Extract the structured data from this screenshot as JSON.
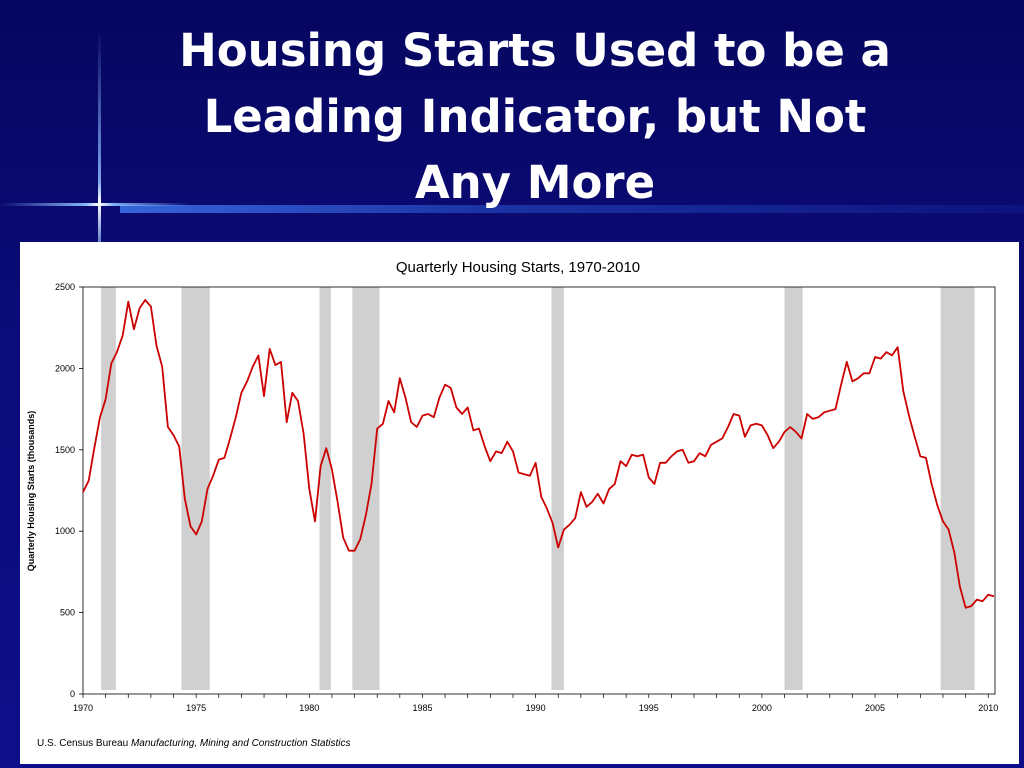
{
  "slide": {
    "title_line1": "Housing Starts Used to be a",
    "title_line2": "Leading Indicator, but Not",
    "title_line3": "Any More"
  },
  "source": {
    "prefix": "U.S. Census Bureau",
    "publication": "Manufacturing, Mining and Construction Statistics"
  },
  "chart_data": {
    "type": "line",
    "title": "Quarterly Housing Starts, 1970-2010",
    "xlabel": "",
    "ylabel": "Quarterly Housing Starts (thousands)",
    "xlim": [
      1970,
      2010.3
    ],
    "ylim": [
      0,
      2500
    ],
    "x_ticks": [
      1970,
      1975,
      1980,
      1985,
      1990,
      1995,
      2000,
      2005,
      2010
    ],
    "y_ticks": [
      0,
      500,
      1000,
      1500,
      2000,
      2500
    ],
    "grid": false,
    "line_color": "#cc0000",
    "recession_color": "#d0d0d0",
    "recessions": [
      [
        1970.8,
        1971.45
      ],
      [
        1974.35,
        1975.6
      ],
      [
        1980.45,
        1980.95
      ],
      [
        1981.9,
        1983.1
      ],
      [
        1990.7,
        1991.25
      ],
      [
        2001.0,
        2001.8
      ],
      [
        2007.9,
        2009.4
      ]
    ],
    "series": [
      {
        "x_start": 1970.0,
        "x_step": 0.25,
        "values": [
          1240,
          1310,
          1510,
          1700,
          1810,
          2030,
          2100,
          2200,
          2410,
          2240,
          2370,
          2420,
          2380,
          2140,
          2010,
          1640,
          1590,
          1520,
          1200,
          1030,
          980,
          1060,
          1260,
          1340,
          1440,
          1450,
          1570,
          1700,
          1850,
          1920,
          2010,
          2080,
          1830,
          2120,
          2020,
          2040,
          1670,
          1850,
          1800,
          1600,
          1260,
          1060,
          1400,
          1510,
          1380,
          1180,
          960,
          880,
          880,
          950,
          1100,
          1290,
          1630,
          1660,
          1800,
          1730,
          1940,
          1820,
          1670,
          1640,
          1710,
          1720,
          1700,
          1820,
          1900,
          1880,
          1760,
          1720,
          1760,
          1620,
          1630,
          1520,
          1430,
          1490,
          1480,
          1550,
          1490,
          1360,
          1350,
          1340,
          1420,
          1210,
          1140,
          1050,
          900,
          1010,
          1040,
          1080,
          1240,
          1150,
          1180,
          1230,
          1170,
          1260,
          1290,
          1430,
          1400,
          1470,
          1460,
          1470,
          1330,
          1290,
          1420,
          1420,
          1460,
          1490,
          1500,
          1420,
          1430,
          1480,
          1460,
          1530,
          1550,
          1570,
          1640,
          1720,
          1710,
          1580,
          1650,
          1660,
          1650,
          1590,
          1510,
          1550,
          1610,
          1640,
          1610,
          1570,
          1720,
          1690,
          1700,
          1730,
          1740,
          1750,
          1900,
          2040,
          1920,
          1940,
          1970,
          1970,
          2070,
          2060,
          2100,
          2080,
          2130,
          1860,
          1710,
          1580,
          1460,
          1450,
          1290,
          1160,
          1060,
          1010,
          870,
          660,
          530,
          540,
          580,
          570,
          610,
          600
        ]
      }
    ]
  }
}
